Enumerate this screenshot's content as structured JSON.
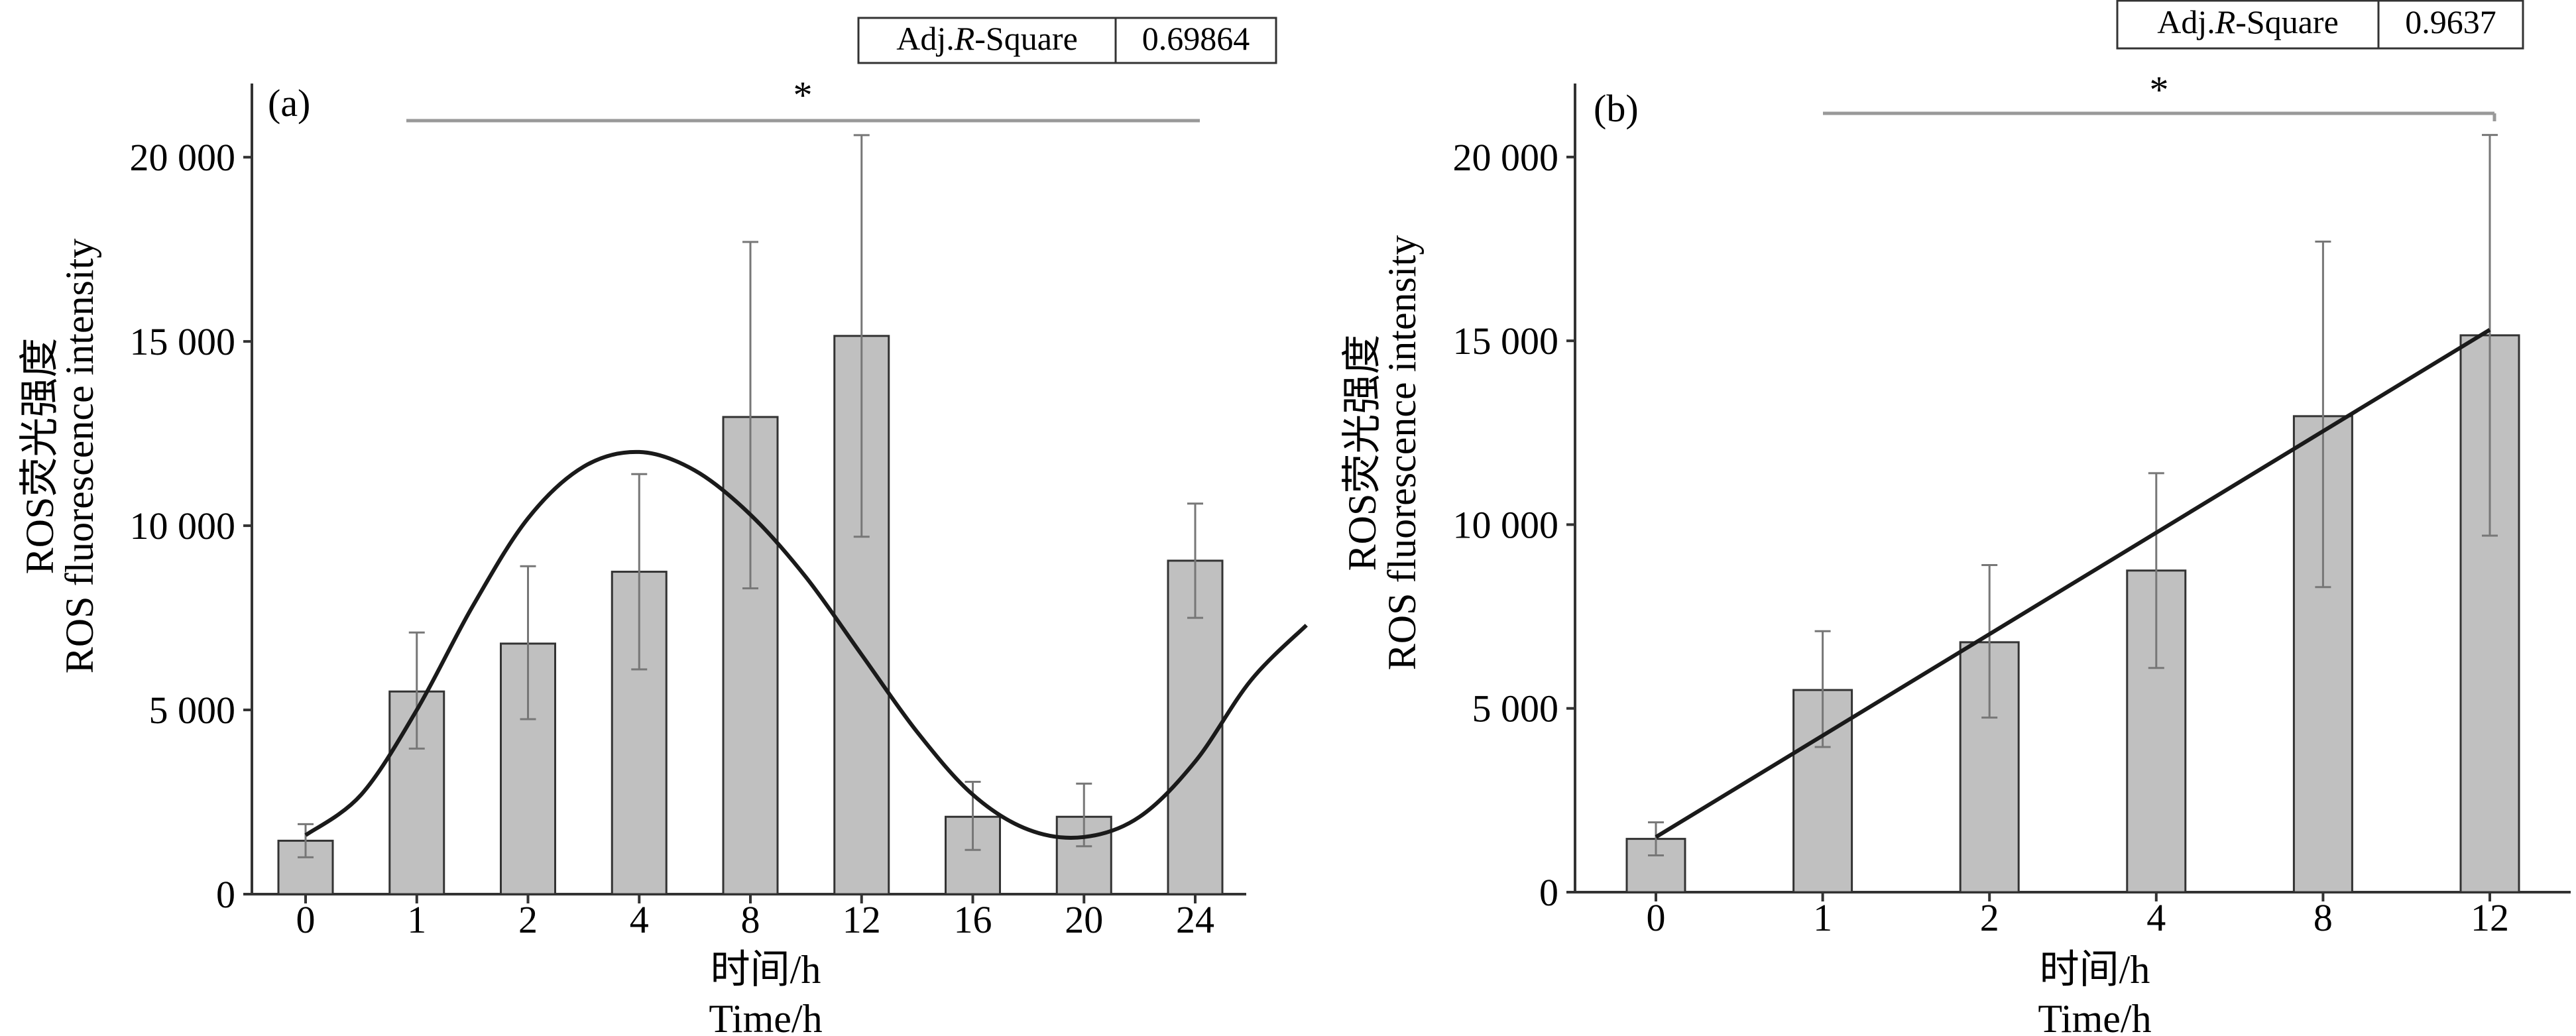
{
  "chart_data": [
    {
      "type": "bar",
      "panel_label": "(a)",
      "categories": [
        "0",
        "1",
        "2",
        "4",
        "8",
        "12",
        "16",
        "20",
        "24"
      ],
      "values": [
        1450,
        5500,
        6800,
        8750,
        12950,
        15150,
        2100,
        2100,
        9050
      ],
      "error_low": [
        1000,
        3950,
        4750,
        6100,
        8300,
        9700,
        1200,
        1300,
        7500
      ],
      "error_high": [
        1900,
        7100,
        8900,
        11400,
        17700,
        20600,
        3050,
        3000,
        10600
      ],
      "fit_curve": {
        "type": "smooth",
        "points": [
          [
            0,
            1600
          ],
          [
            0.5,
            2700
          ],
          [
            1,
            5000
          ],
          [
            1.5,
            7800
          ],
          [
            2,
            10200
          ],
          [
            2.5,
            11600
          ],
          [
            3,
            12000
          ],
          [
            3.5,
            11500
          ],
          [
            4,
            10300
          ],
          [
            4.5,
            8600
          ],
          [
            5,
            6500
          ],
          [
            5.5,
            4400
          ],
          [
            6,
            2700
          ],
          [
            6.5,
            1750
          ],
          [
            7,
            1550
          ],
          [
            7.5,
            2100
          ],
          [
            8,
            3600
          ],
          [
            8.5,
            5800
          ],
          [
            9,
            7300
          ]
        ]
      },
      "fit_table": {
        "label": "Adj.R-Square",
        "value": "0.69864"
      },
      "significance_marker": "*",
      "ylabel_line1": "ROS荧光强度",
      "ylabel_line2": "ROS fluorescence intensity",
      "xlabel_line1": "时间/h",
      "xlabel_line2": "Time/h",
      "ylim": [
        0,
        22000
      ],
      "yticks": [
        0,
        5000,
        10000,
        15000,
        20000
      ],
      "ytick_labels": [
        "0",
        "5 000",
        "10 000",
        "15 000",
        "20 000"
      ],
      "bar_color": "#c0c0c0",
      "curve_color": "#1a1a1a",
      "error_color": "#777777",
      "grid": false
    },
    {
      "type": "bar",
      "panel_label": "(b)",
      "categories": [
        "0",
        "1",
        "2",
        "4",
        "8",
        "12"
      ],
      "values": [
        1450,
        5500,
        6800,
        8750,
        12950,
        15150
      ],
      "error_low": [
        1000,
        3950,
        4750,
        6100,
        8300,
        9700
      ],
      "error_high": [
        1900,
        7100,
        8900,
        11400,
        17700,
        20600
      ],
      "fit_curve": {
        "type": "linear",
        "points": [
          [
            0,
            1500
          ],
          [
            5,
            15300
          ]
        ]
      },
      "fit_table": {
        "label": "Adj.R-Square",
        "value": "0.9637"
      },
      "significance_marker": "*",
      "ylabel_line1": "ROS荧光强度",
      "ylabel_line2": "ROS fluorescence intensity",
      "xlabel_line1": "时间/h",
      "xlabel_line2": "Time/h",
      "ylim": [
        0,
        22000
      ],
      "yticks": [
        0,
        5000,
        10000,
        15000,
        20000
      ],
      "ytick_labels": [
        "0",
        "5 000",
        "10 000",
        "15 000",
        "20 000"
      ],
      "bar_color": "#c0c0c0",
      "curve_color": "#1a1a1a",
      "error_color": "#777777",
      "grid": false
    }
  ]
}
